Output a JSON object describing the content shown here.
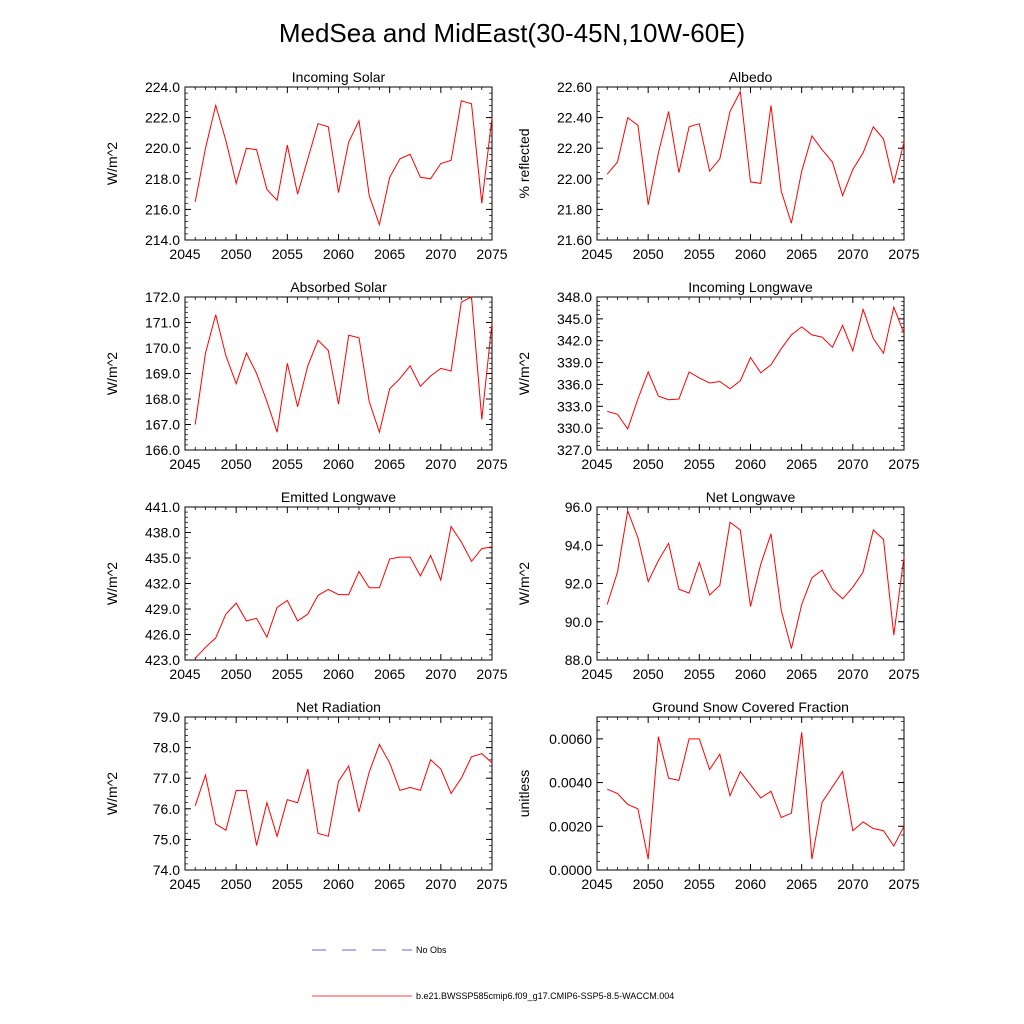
{
  "figure_title": "MedSea and MidEast(30-45N,10W-60E)",
  "legend": {
    "entries": [
      {
        "label": "No Obs",
        "style": "dashed",
        "color": "#3333cc"
      },
      {
        "label": "b.e21.BWSSP585cmip6.f09_g17.CMIP6-SSP5-8.5-WACCM.004",
        "style": "solid",
        "color": "#ff0000"
      }
    ]
  },
  "chart_data": [
    {
      "type": "line",
      "title": "Incoming Solar",
      "ylabel": "W/m^2",
      "xlabel": "",
      "xlim": [
        2045,
        2075
      ],
      "ylim": [
        214,
        224
      ],
      "xticks": [
        2045,
        2050,
        2055,
        2060,
        2065,
        2070,
        2075
      ],
      "xticklabels": [
        "2045",
        "2050",
        "2055",
        "2060",
        "2065",
        "2070",
        "2075"
      ],
      "yticks": [
        214,
        216,
        218,
        220,
        222,
        224
      ],
      "yticklabels": [
        "214.0",
        "216.0",
        "218.0",
        "220.0",
        "222.0",
        "224.0"
      ],
      "x": [
        2046,
        2047,
        2048,
        2049,
        2050,
        2051,
        2052,
        2053,
        2054,
        2055,
        2056,
        2057,
        2058,
        2059,
        2060,
        2061,
        2062,
        2063,
        2064,
        2065,
        2066,
        2067,
        2068,
        2069,
        2070,
        2071,
        2072,
        2073,
        2074,
        2075
      ],
      "series": [
        {
          "name": "b.e21.BWSSP585cmip6.f09_g17.CMIP6-SSP5-8.5-WACCM.004",
          "color": "#ff0000",
          "values": [
            216.5,
            220.0,
            222.8,
            220.5,
            217.7,
            220.0,
            219.9,
            217.3,
            216.6,
            220.2,
            217.0,
            219.3,
            221.6,
            221.4,
            217.1,
            220.4,
            221.8,
            216.9,
            215.0,
            218.1,
            219.3,
            219.6,
            218.1,
            218.0,
            219.0,
            219.2,
            223.1,
            222.9,
            216.4,
            222.0
          ]
        }
      ]
    },
    {
      "type": "line",
      "title": "Albedo",
      "ylabel": "% reflected",
      "xlabel": "",
      "xlim": [
        2045,
        2075
      ],
      "ylim": [
        21.6,
        22.6
      ],
      "xticks": [
        2045,
        2050,
        2055,
        2060,
        2065,
        2070,
        2075
      ],
      "xticklabels": [
        "2045",
        "2050",
        "2055",
        "2060",
        "2065",
        "2070",
        "2075"
      ],
      "yticks": [
        21.6,
        21.8,
        22.0,
        22.2,
        22.4,
        22.6
      ],
      "yticklabels": [
        "21.60",
        "21.80",
        "22.00",
        "22.20",
        "22.40",
        "22.60"
      ],
      "x": [
        2046,
        2047,
        2048,
        2049,
        2050,
        2051,
        2052,
        2053,
        2054,
        2055,
        2056,
        2057,
        2058,
        2059,
        2060,
        2061,
        2062,
        2063,
        2064,
        2065,
        2066,
        2067,
        2068,
        2069,
        2070,
        2071,
        2072,
        2073,
        2074,
        2075
      ],
      "series": [
        {
          "name": "b.e21.BWSSP585cmip6.f09_g17.CMIP6-SSP5-8.5-WACCM.004",
          "color": "#ff0000",
          "values": [
            22.03,
            22.11,
            22.4,
            22.35,
            21.83,
            22.17,
            22.44,
            22.04,
            22.34,
            22.36,
            22.05,
            22.13,
            22.44,
            22.57,
            21.98,
            21.97,
            22.48,
            21.92,
            21.71,
            22.05,
            22.28,
            22.19,
            22.11,
            21.89,
            22.06,
            22.17,
            22.34,
            22.26,
            21.97,
            22.24
          ]
        }
      ]
    },
    {
      "type": "line",
      "title": "Absorbed Solar",
      "ylabel": "W/m^2",
      "xlabel": "",
      "xlim": [
        2045,
        2075
      ],
      "ylim": [
        166,
        172
      ],
      "xticks": [
        2045,
        2050,
        2055,
        2060,
        2065,
        2070,
        2075
      ],
      "xticklabels": [
        "2045",
        "2050",
        "2055",
        "2060",
        "2065",
        "2070",
        "2075"
      ],
      "yticks": [
        166,
        167,
        168,
        169,
        170,
        171,
        172
      ],
      "yticklabels": [
        "166.0",
        "167.0",
        "168.0",
        "169.0",
        "170.0",
        "171.0",
        "172.0"
      ],
      "x": [
        2046,
        2047,
        2048,
        2049,
        2050,
        2051,
        2052,
        2053,
        2054,
        2055,
        2056,
        2057,
        2058,
        2059,
        2060,
        2061,
        2062,
        2063,
        2064,
        2065,
        2066,
        2067,
        2068,
        2069,
        2070,
        2071,
        2072,
        2073,
        2074,
        2075
      ],
      "series": [
        {
          "name": "b.e21.BWSSP585cmip6.f09_g17.CMIP6-SSP5-8.5-WACCM.004",
          "color": "#ff0000",
          "values": [
            167.0,
            169.8,
            171.3,
            169.7,
            168.6,
            169.8,
            169.0,
            167.9,
            166.7,
            169.4,
            167.7,
            169.3,
            170.3,
            169.9,
            167.8,
            170.5,
            170.4,
            167.9,
            166.7,
            168.4,
            168.8,
            169.3,
            168.5,
            168.9,
            169.2,
            169.1,
            171.8,
            172.0,
            167.2,
            171.0
          ]
        }
      ]
    },
    {
      "type": "line",
      "title": "Incoming Longwave",
      "ylabel": "W/m^2",
      "xlabel": "",
      "xlim": [
        2045,
        2075
      ],
      "ylim": [
        327,
        348
      ],
      "xticks": [
        2045,
        2050,
        2055,
        2060,
        2065,
        2070,
        2075
      ],
      "xticklabels": [
        "2045",
        "2050",
        "2055",
        "2060",
        "2065",
        "2070",
        "2075"
      ],
      "yticks": [
        327,
        330,
        333,
        336,
        339,
        342,
        345,
        348
      ],
      "yticklabels": [
        "327.0",
        "330.0",
        "333.0",
        "336.0",
        "339.0",
        "342.0",
        "345.0",
        "348.0"
      ],
      "x": [
        2046,
        2047,
        2048,
        2049,
        2050,
        2051,
        2052,
        2053,
        2054,
        2055,
        2056,
        2057,
        2058,
        2059,
        2060,
        2061,
        2062,
        2063,
        2064,
        2065,
        2066,
        2067,
        2068,
        2069,
        2070,
        2071,
        2072,
        2073,
        2074,
        2075
      ],
      "series": [
        {
          "name": "b.e21.BWSSP585cmip6.f09_g17.CMIP6-SSP5-8.5-WACCM.004",
          "color": "#ff0000",
          "values": [
            332.3,
            331.9,
            329.9,
            334.0,
            337.7,
            334.4,
            333.9,
            334.0,
            337.7,
            336.9,
            336.2,
            336.4,
            335.4,
            336.5,
            339.7,
            337.6,
            338.7,
            340.9,
            342.8,
            343.9,
            342.8,
            342.5,
            341.1,
            344.1,
            340.6,
            346.3,
            342.3,
            340.3,
            346.6,
            343.0
          ]
        }
      ]
    },
    {
      "type": "line",
      "title": "Emitted Longwave",
      "ylabel": "W/m^2",
      "xlabel": "",
      "xlim": [
        2045,
        2075
      ],
      "ylim": [
        423,
        441
      ],
      "xticks": [
        2045,
        2050,
        2055,
        2060,
        2065,
        2070,
        2075
      ],
      "xticklabels": [
        "2045",
        "2050",
        "2055",
        "2060",
        "2065",
        "2070",
        "2075"
      ],
      "yticks": [
        423,
        426,
        429,
        432,
        435,
        438,
        441
      ],
      "yticklabels": [
        "423.0",
        "426.0",
        "429.0",
        "432.0",
        "435.0",
        "438.0",
        "441.0"
      ],
      "x": [
        2046,
        2047,
        2048,
        2049,
        2050,
        2051,
        2052,
        2053,
        2054,
        2055,
        2056,
        2057,
        2058,
        2059,
        2060,
        2061,
        2062,
        2063,
        2064,
        2065,
        2066,
        2067,
        2068,
        2069,
        2070,
        2071,
        2072,
        2073,
        2074,
        2075
      ],
      "series": [
        {
          "name": "b.e21.BWSSP585cmip6.f09_g17.CMIP6-SSP5-8.5-WACCM.004",
          "color": "#ff0000",
          "values": [
            423.2,
            424.5,
            425.6,
            428.4,
            429.7,
            427.6,
            427.9,
            425.7,
            429.2,
            430.0,
            427.6,
            428.4,
            430.6,
            431.3,
            430.7,
            430.7,
            433.4,
            431.5,
            431.5,
            434.9,
            435.1,
            435.1,
            432.9,
            435.3,
            432.4,
            438.7,
            436.9,
            434.6,
            436.1,
            436.3
          ]
        }
      ]
    },
    {
      "type": "line",
      "title": "Net Longwave",
      "ylabel": "W/m^2",
      "xlabel": "",
      "xlim": [
        2045,
        2075
      ],
      "ylim": [
        88,
        96
      ],
      "xticks": [
        2045,
        2050,
        2055,
        2060,
        2065,
        2070,
        2075
      ],
      "xticklabels": [
        "2045",
        "2050",
        "2055",
        "2060",
        "2065",
        "2070",
        "2075"
      ],
      "yticks": [
        88,
        90,
        92,
        94,
        96
      ],
      "yticklabels": [
        "88.0",
        "90.0",
        "92.0",
        "94.0",
        "96.0"
      ],
      "x": [
        2046,
        2047,
        2048,
        2049,
        2050,
        2051,
        2052,
        2053,
        2054,
        2055,
        2056,
        2057,
        2058,
        2059,
        2060,
        2061,
        2062,
        2063,
        2064,
        2065,
        2066,
        2067,
        2068,
        2069,
        2070,
        2071,
        2072,
        2073,
        2074,
        2075
      ],
      "series": [
        {
          "name": "b.e21.BWSSP585cmip6.f09_g17.CMIP6-SSP5-8.5-WACCM.004",
          "color": "#ff0000",
          "values": [
            90.9,
            92.6,
            95.8,
            94.4,
            92.1,
            93.2,
            94.1,
            91.7,
            91.5,
            93.1,
            91.4,
            91.9,
            95.2,
            94.8,
            90.8,
            93.0,
            94.6,
            90.6,
            88.6,
            90.9,
            92.3,
            92.7,
            91.7,
            91.2,
            91.8,
            92.6,
            94.8,
            94.3,
            89.3,
            93.4
          ]
        }
      ]
    },
    {
      "type": "line",
      "title": "Net Radiation",
      "ylabel": "W/m^2",
      "xlabel": "",
      "xlim": [
        2045,
        2075
      ],
      "ylim": [
        74,
        79
      ],
      "xticks": [
        2045,
        2050,
        2055,
        2060,
        2065,
        2070,
        2075
      ],
      "xticklabels": [
        "2045",
        "2050",
        "2055",
        "2060",
        "2065",
        "2070",
        "2075"
      ],
      "yticks": [
        74,
        75,
        76,
        77,
        78,
        79
      ],
      "yticklabels": [
        "74.0",
        "75.0",
        "76.0",
        "77.0",
        "78.0",
        "79.0"
      ],
      "x": [
        2046,
        2047,
        2048,
        2049,
        2050,
        2051,
        2052,
        2053,
        2054,
        2055,
        2056,
        2057,
        2058,
        2059,
        2060,
        2061,
        2062,
        2063,
        2064,
        2065,
        2066,
        2067,
        2068,
        2069,
        2070,
        2071,
        2072,
        2073,
        2074,
        2075
      ],
      "series": [
        {
          "name": "b.e21.BWSSP585cmip6.f09_g17.CMIP6-SSP5-8.5-WACCM.004",
          "color": "#ff0000",
          "values": [
            76.1,
            77.1,
            75.5,
            75.3,
            76.6,
            76.6,
            74.8,
            76.2,
            75.1,
            76.3,
            76.2,
            77.3,
            75.2,
            75.1,
            76.9,
            77.4,
            75.9,
            77.2,
            78.1,
            77.5,
            76.6,
            76.7,
            76.6,
            77.6,
            77.3,
            76.5,
            77.0,
            77.7,
            77.8,
            77.5
          ]
        }
      ]
    },
    {
      "type": "line",
      "title": "Ground Snow Covered Fraction",
      "ylabel": "unitless",
      "xlabel": "",
      "xlim": [
        2045,
        2075
      ],
      "ylim": [
        0.0,
        0.007
      ],
      "xticks": [
        2045,
        2050,
        2055,
        2060,
        2065,
        2070,
        2075
      ],
      "xticklabels": [
        "2045",
        "2050",
        "2055",
        "2060",
        "2065",
        "2070",
        "2075"
      ],
      "yticks": [
        0.0,
        0.002,
        0.004,
        0.006
      ],
      "yticklabels": [
        "0.0000",
        "0.0020",
        "0.0040",
        "0.0060"
      ],
      "x": [
        2046,
        2047,
        2048,
        2049,
        2050,
        2051,
        2052,
        2053,
        2054,
        2055,
        2056,
        2057,
        2058,
        2059,
        2060,
        2061,
        2062,
        2063,
        2064,
        2065,
        2066,
        2067,
        2068,
        2069,
        2070,
        2071,
        2072,
        2073,
        2074,
        2075
      ],
      "series": [
        {
          "name": "b.e21.BWSSP585cmip6.f09_g17.CMIP6-SSP5-8.5-WACCM.004",
          "color": "#ff0000",
          "values": [
            0.0037,
            0.0035,
            0.003,
            0.0028,
            0.0005,
            0.0061,
            0.0042,
            0.0041,
            0.006,
            0.006,
            0.0046,
            0.0053,
            0.0034,
            0.0045,
            0.0039,
            0.0033,
            0.0036,
            0.0024,
            0.0026,
            0.0063,
            0.0005,
            0.0031,
            0.0038,
            0.0045,
            0.0018,
            0.0022,
            0.0019,
            0.0018,
            0.0011,
            0.002
          ]
        }
      ]
    }
  ]
}
